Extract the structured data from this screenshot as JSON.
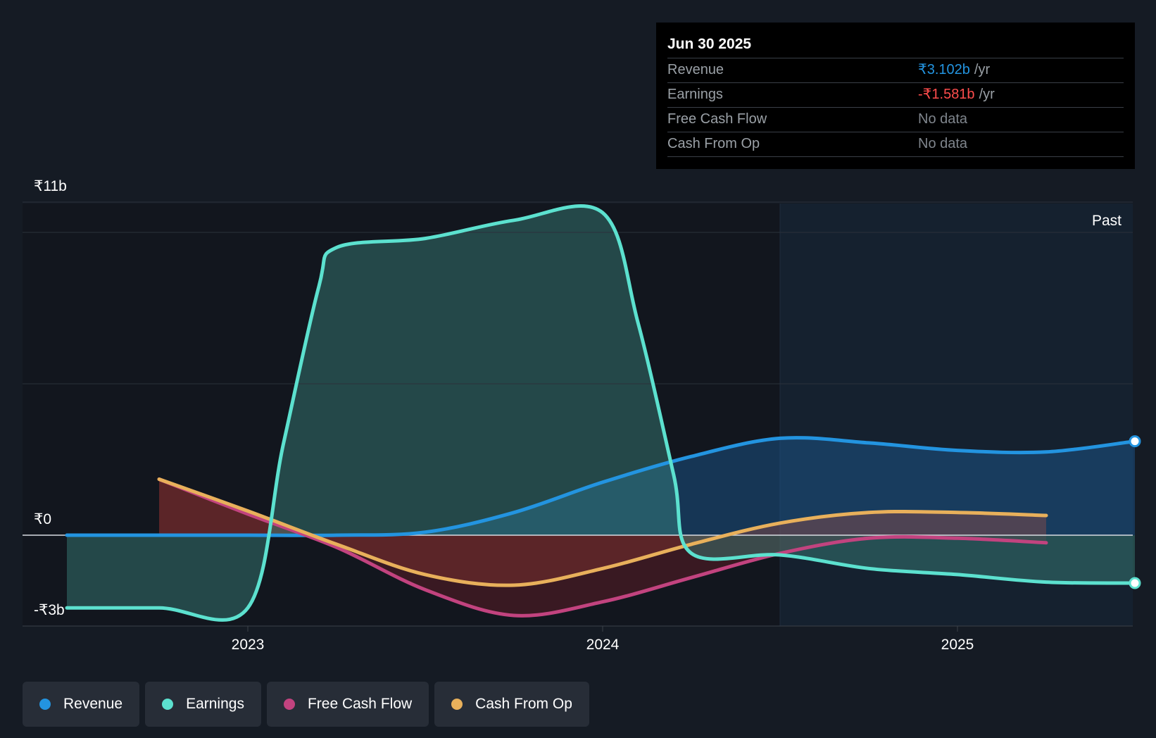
{
  "chart_data": {
    "type": "area",
    "title": "",
    "x_ticks": [
      {
        "label": "2023",
        "t": 2023.0
      },
      {
        "label": "2024",
        "t": 2024.0
      },
      {
        "label": "2025",
        "t": 2025.0
      }
    ],
    "xlim": [
      2022.36,
      2025.5
    ],
    "y_ticks": [
      {
        "label": "₹11b",
        "v": 11
      },
      {
        "label": "₹0",
        "v": 0
      },
      {
        "label": "-₹3b",
        "v": -3
      }
    ],
    "ylim": [
      -3,
      11
    ],
    "unit": "₹ billions per year",
    "forecast_start": 2024.5,
    "region_label": "Past",
    "series": [
      {
        "name": "Revenue",
        "color": "#2394e0",
        "points": [
          [
            2022.49,
            0
          ],
          [
            2022.75,
            0
          ],
          [
            2023.0,
            0
          ],
          [
            2023.25,
            0
          ],
          [
            2023.5,
            0.1
          ],
          [
            2023.75,
            0.75
          ],
          [
            2024.0,
            1.75
          ],
          [
            2024.25,
            2.6
          ],
          [
            2024.5,
            3.2
          ],
          [
            2024.75,
            3.05
          ],
          [
            2025.0,
            2.8
          ],
          [
            2025.25,
            2.75
          ],
          [
            2025.5,
            3.102
          ]
        ]
      },
      {
        "name": "Earnings",
        "color": "#5ce1cf",
        "points": [
          [
            2022.49,
            -2.4
          ],
          [
            2022.75,
            -2.4
          ],
          [
            2023.0,
            -2.4
          ],
          [
            2023.1,
            3.0
          ],
          [
            2023.2,
            8.2
          ],
          [
            2023.25,
            9.5
          ],
          [
            2023.5,
            9.8
          ],
          [
            2023.75,
            10.4
          ],
          [
            2024.0,
            10.65
          ],
          [
            2024.1,
            7.0
          ],
          [
            2024.2,
            2.0
          ],
          [
            2024.25,
            -0.6
          ],
          [
            2024.5,
            -0.65
          ],
          [
            2024.75,
            -1.1
          ],
          [
            2025.0,
            -1.3
          ],
          [
            2025.25,
            -1.55
          ],
          [
            2025.5,
            -1.581
          ]
        ]
      },
      {
        "name": "Free Cash Flow",
        "color": "#c2437f",
        "points": [
          [
            2022.75,
            1.85
          ],
          [
            2023.0,
            0.7
          ],
          [
            2023.25,
            -0.4
          ],
          [
            2023.5,
            -1.8
          ],
          [
            2023.75,
            -2.65
          ],
          [
            2024.0,
            -2.2
          ],
          [
            2024.25,
            -1.4
          ],
          [
            2024.5,
            -0.6
          ],
          [
            2024.75,
            -0.1
          ],
          [
            2025.0,
            -0.1
          ],
          [
            2025.25,
            -0.25
          ]
        ]
      },
      {
        "name": "Cash From Op",
        "color": "#e8b05b",
        "points": [
          [
            2022.75,
            1.85
          ],
          [
            2023.0,
            0.8
          ],
          [
            2023.25,
            -0.3
          ],
          [
            2023.5,
            -1.3
          ],
          [
            2023.75,
            -1.65
          ],
          [
            2024.0,
            -1.1
          ],
          [
            2024.25,
            -0.3
          ],
          [
            2024.5,
            0.4
          ],
          [
            2024.75,
            0.75
          ],
          [
            2025.0,
            0.75
          ],
          [
            2025.25,
            0.65
          ]
        ]
      }
    ]
  },
  "tooltip": {
    "date": "Jun 30 2025",
    "rows": [
      {
        "label": "Revenue",
        "value": "₹3.102b",
        "unit": "/yr",
        "color": "#2394e0"
      },
      {
        "label": "Earnings",
        "value": "-₹1.581b",
        "unit": "/yr",
        "color": "#ff4d4d"
      },
      {
        "label": "Free Cash Flow",
        "value": "No data",
        "unit": "",
        "color": "#7f858c"
      },
      {
        "label": "Cash From Op",
        "value": "No data",
        "unit": "",
        "color": "#7f858c"
      }
    ]
  },
  "legend": [
    {
      "label": "Revenue",
      "color": "#2394e0"
    },
    {
      "label": "Earnings",
      "color": "#5ce1cf"
    },
    {
      "label": "Free Cash Flow",
      "color": "#c2437f"
    },
    {
      "label": "Cash From Op",
      "color": "#e8b05b"
    }
  ]
}
